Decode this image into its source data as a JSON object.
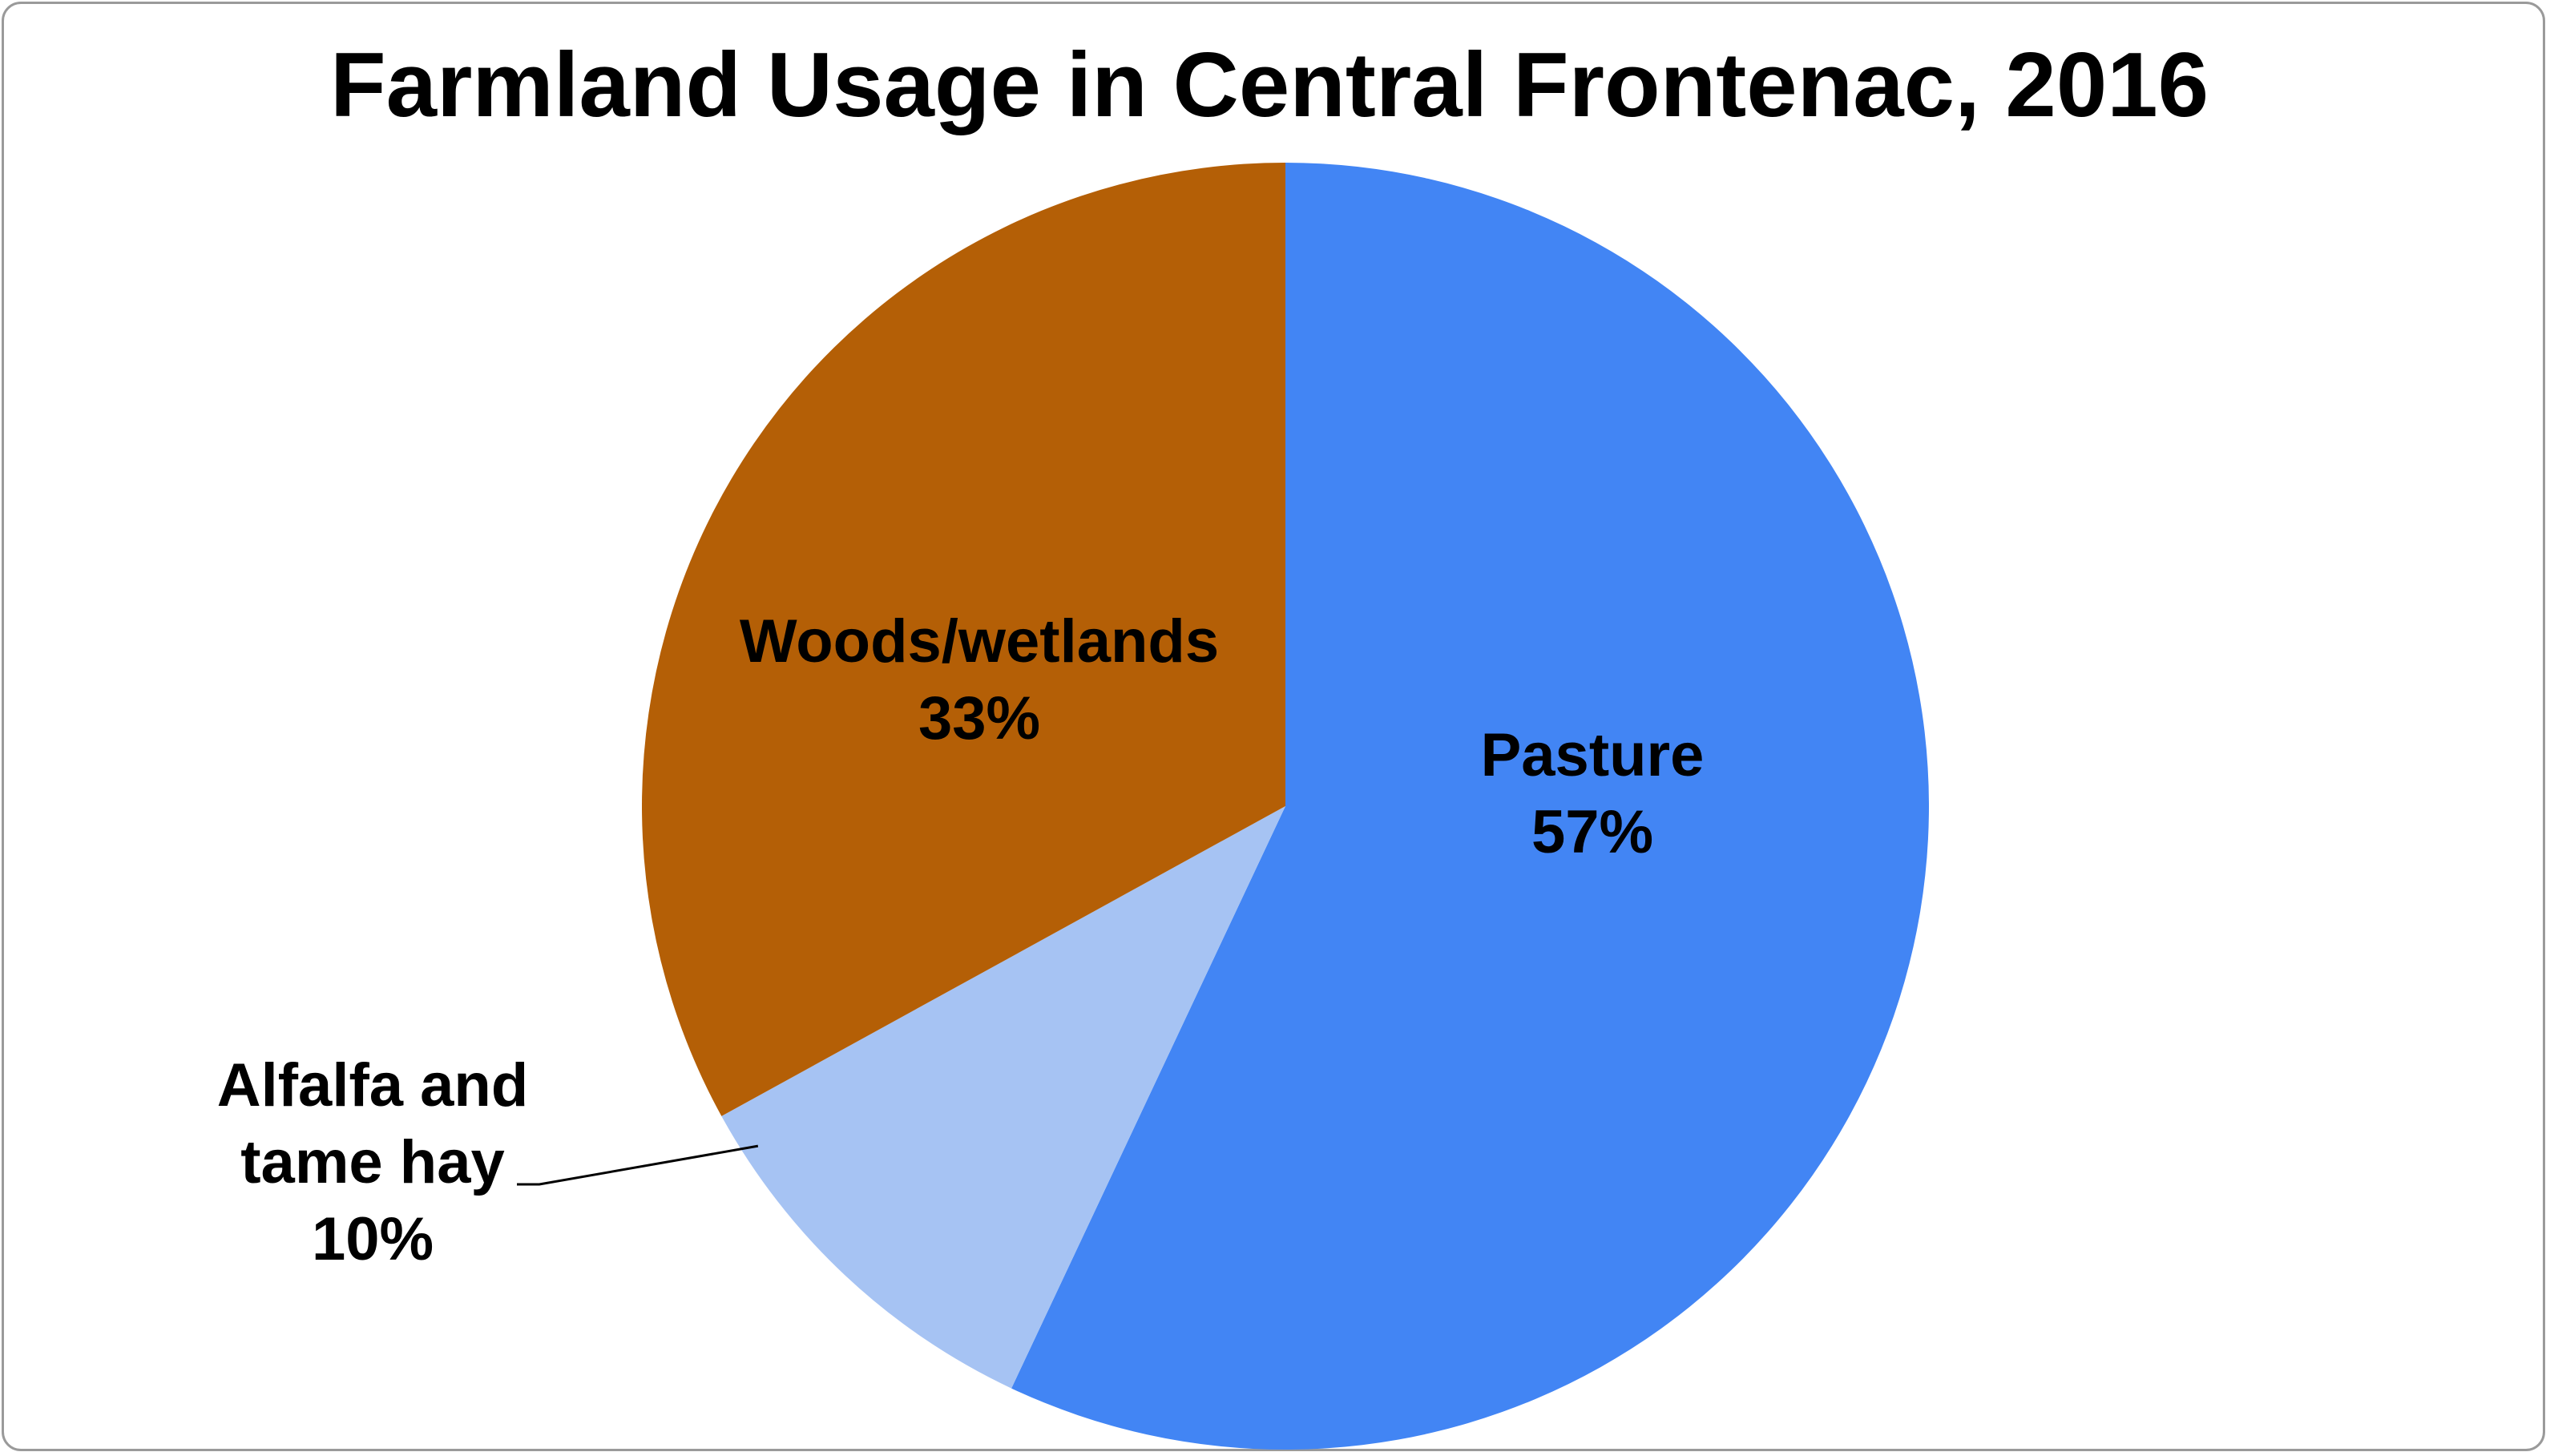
{
  "chart_data": {
    "type": "pie",
    "title": "Farmland Usage in Central Frontenac, 2016",
    "slices": [
      {
        "name": "Pasture",
        "value": 57,
        "value_label": "57%",
        "color": "#4285F4",
        "label_lines": [
          "Pasture"
        ]
      },
      {
        "name": "Alfalfa and tame hay",
        "value": 10,
        "value_label": "10%",
        "color": "#A6C3F3",
        "label_lines": [
          "Alfalfa and",
          "tame hay"
        ]
      },
      {
        "name": "Woods/wetlands",
        "value": 33,
        "value_label": "33%",
        "color": "#B45F06",
        "label_lines": [
          "Woods/wetlands"
        ]
      }
    ],
    "start_angle_deg": 0,
    "direction": "clockwise",
    "legend": "none",
    "data_labels": "category name and percentage"
  }
}
